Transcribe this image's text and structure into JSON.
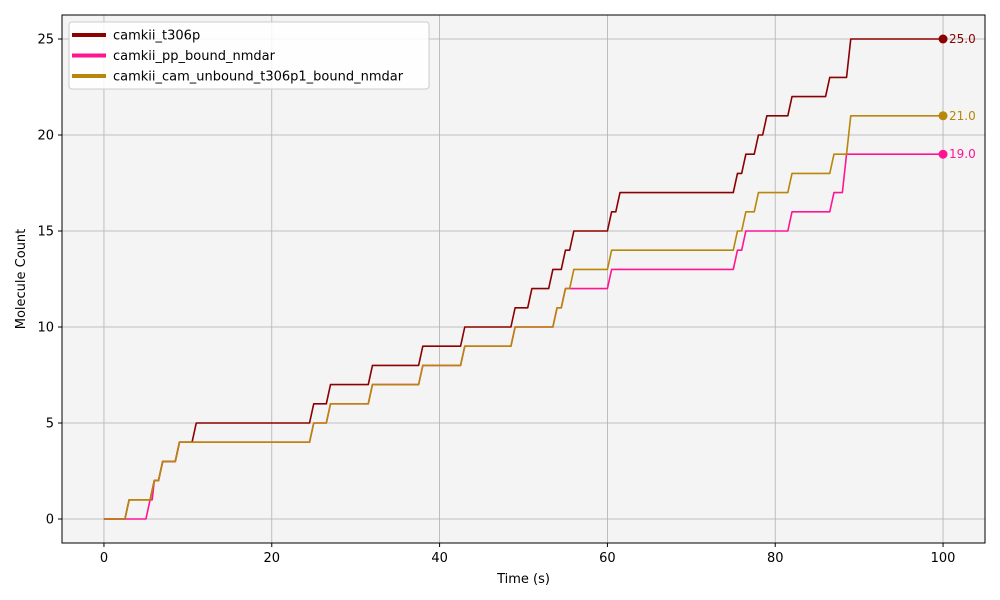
{
  "chart_data": {
    "type": "line",
    "step": true,
    "xlabel": "Time (s)",
    "ylabel": "Molecule Count",
    "xlim": [
      -5,
      105
    ],
    "ylim": [
      -1.25,
      26.25
    ],
    "xticks": [
      0,
      20,
      40,
      60,
      80,
      100
    ],
    "yticks": [
      0,
      5,
      10,
      15,
      20,
      25
    ],
    "grid": true,
    "legend_position": "top-left",
    "background": "#f4f4f4",
    "series": [
      {
        "name": "camkii_t306p",
        "color": "#8b0000",
        "end_label": "25.0",
        "x": [
          0,
          3,
          6,
          7,
          9,
          11,
          25,
          27,
          32,
          38,
          43,
          49,
          51,
          53.5,
          55,
          56,
          60.5,
          61.5,
          75.5,
          76.5,
          78,
          79,
          82,
          86.5,
          89,
          100
        ],
        "y": [
          0,
          1,
          2,
          3,
          4,
          5,
          6,
          7,
          8,
          9,
          10,
          11,
          12,
          13,
          14,
          15,
          16,
          17,
          18,
          19,
          20,
          21,
          22,
          23,
          25,
          25
        ]
      },
      {
        "name": "camkii_pp_bound_nmdar",
        "color": "#ff1493",
        "end_label": "19.0",
        "x": [
          0,
          5.5,
          6,
          7,
          9,
          25,
          27,
          32,
          38,
          43,
          49,
          54,
          55,
          60.5,
          75.5,
          76.5,
          82,
          87,
          88.5,
          100
        ],
        "y": [
          0,
          1,
          2,
          3,
          4,
          5,
          6,
          7,
          8,
          9,
          10,
          11,
          12,
          13,
          14,
          15,
          16,
          17,
          19,
          19
        ]
      },
      {
        "name": "camkii_cam_unbound_t306p1_bound_nmdar",
        "color": "#b8860b",
        "end_label": "21.0",
        "x": [
          0,
          3,
          6,
          7,
          9,
          25,
          27,
          32,
          38,
          43,
          49,
          54,
          55,
          56,
          60.5,
          75.5,
          76.5,
          78,
          82,
          87,
          89,
          100
        ],
        "y": [
          0,
          1,
          2,
          3,
          4,
          5,
          6,
          7,
          8,
          9,
          10,
          11,
          12,
          13,
          14,
          15,
          16,
          17,
          18,
          19,
          21,
          21
        ]
      }
    ]
  }
}
